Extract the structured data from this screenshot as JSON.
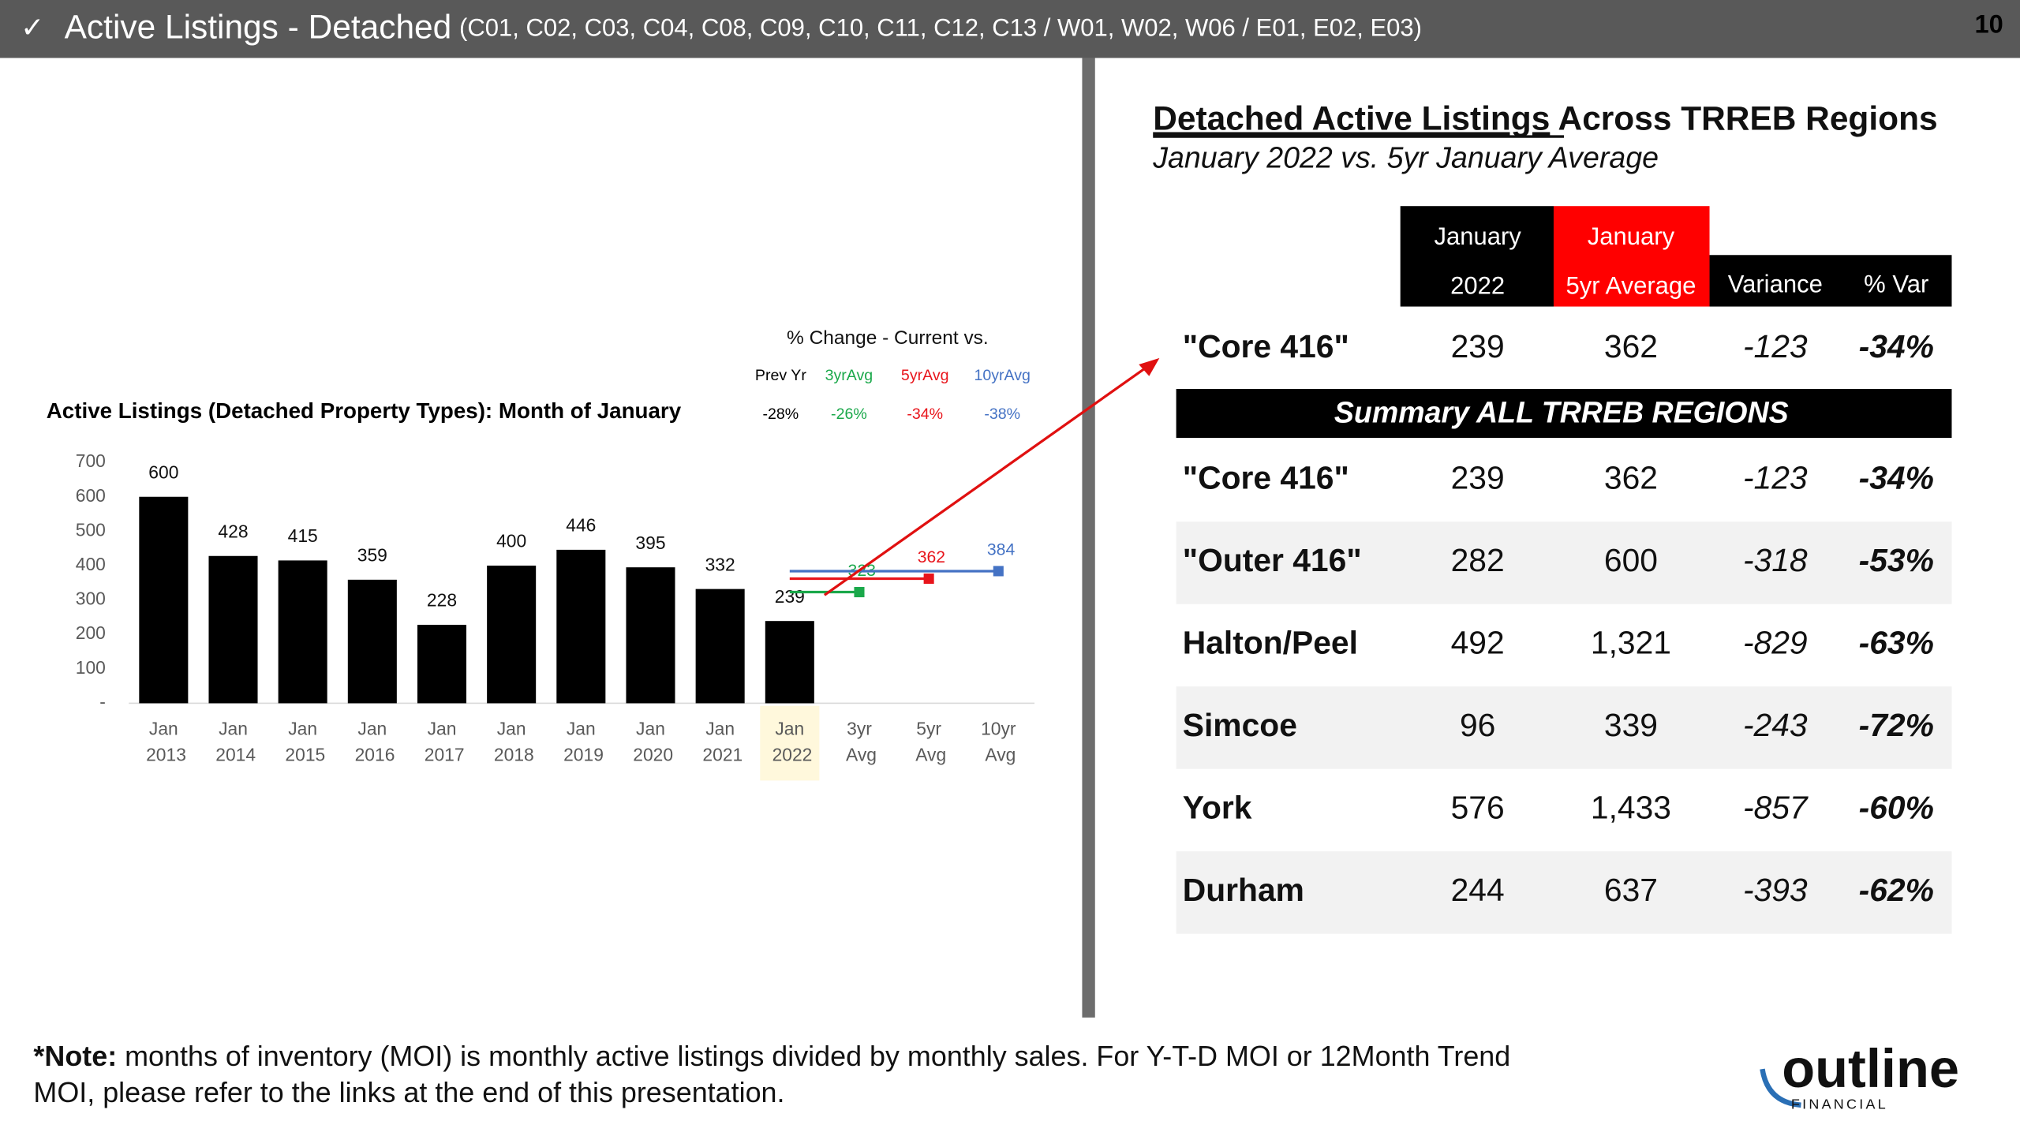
{
  "header": {
    "check": "✓",
    "title": "Active Listings - Detached",
    "subtitle": "(C01, C02, C03, C04, C08, C09, C10, C11, C12, C13 / W01, W02, W06 / E01, E02, E03)",
    "page": "10"
  },
  "chart_data": {
    "type": "bar",
    "title": "Active Listings (Detached Property Types): Month of January",
    "categories": [
      "Jan 2013",
      "Jan 2014",
      "Jan 2015",
      "Jan 2016",
      "Jan 2017",
      "Jan 2018",
      "Jan 2019",
      "Jan 2020",
      "Jan 2021",
      "Jan 2022",
      "3yr Avg",
      "5yr Avg",
      "10yr Avg"
    ],
    "values": [
      600,
      428,
      415,
      359,
      228,
      400,
      446,
      395,
      332,
      239,
      323,
      362,
      384
    ],
    "kinds": [
      "bar",
      "bar",
      "bar",
      "bar",
      "bar",
      "bar",
      "bar",
      "bar",
      "bar",
      "bar",
      "line",
      "line",
      "line"
    ],
    "colors": [
      "#000000",
      "#000000",
      "#000000",
      "#000000",
      "#000000",
      "#000000",
      "#000000",
      "#000000",
      "#000000",
      "#000000",
      "#1aa84a",
      "#e8141b",
      "#4472c4"
    ],
    "ylim": [
      0,
      700
    ],
    "yticks": [
      {
        "value": 0,
        "label": "-"
      },
      100,
      200,
      300,
      400,
      500,
      600,
      700
    ],
    "highlight": "Jan 2022",
    "change_table": {
      "title": "% Change - Current vs.",
      "headers": [
        "Prev Yr",
        "3yrAvg",
        "5yrAvg",
        "10yrAvg"
      ],
      "values": [
        "-28%",
        "-26%",
        "-34%",
        "-38%"
      ],
      "colors": [
        "#000000",
        "#1aa84a",
        "#e8141b",
        "#4472c4"
      ]
    }
  },
  "table": {
    "title_underlined": "Detached Active Listings",
    "title_rest": " Across TRREB Regions",
    "subtitle": "January 2022 vs. 5yr January Average",
    "header": [
      [
        "January",
        "2022"
      ],
      [
        "January",
        "5yr Average"
      ],
      [
        "Variance"
      ],
      [
        "% Var"
      ]
    ],
    "top_row": [
      "\"Core 416\"",
      "239",
      "362",
      "-123",
      "-34%"
    ],
    "summary": "Summary ALL TRREB REGIONS",
    "rows": [
      [
        "\"Core 416\"",
        "239",
        "362",
        "-123",
        "-34%"
      ],
      [
        "\"Outer 416\"",
        "282",
        "600",
        "-318",
        "-53%"
      ],
      [
        "Halton/Peel",
        "492",
        "1,321",
        "-829",
        "-63%"
      ],
      [
        "Simcoe",
        "96",
        "339",
        "-243",
        "-72%"
      ],
      [
        "York",
        "576",
        "1,433",
        "-857",
        "-60%"
      ],
      [
        "Durham",
        "244",
        "637",
        "-393",
        "-62%"
      ]
    ]
  },
  "note": {
    "label": "*Note:",
    "lines": [
      " months of inventory (MOI) is monthly active listings divided by monthly sales.  For Y-T-D MOI or 12Month Trend",
      "MOI, please refer to the links at the end of this presentation."
    ]
  },
  "logo": {
    "name": "outline",
    "sub": "FINANCIAL"
  }
}
